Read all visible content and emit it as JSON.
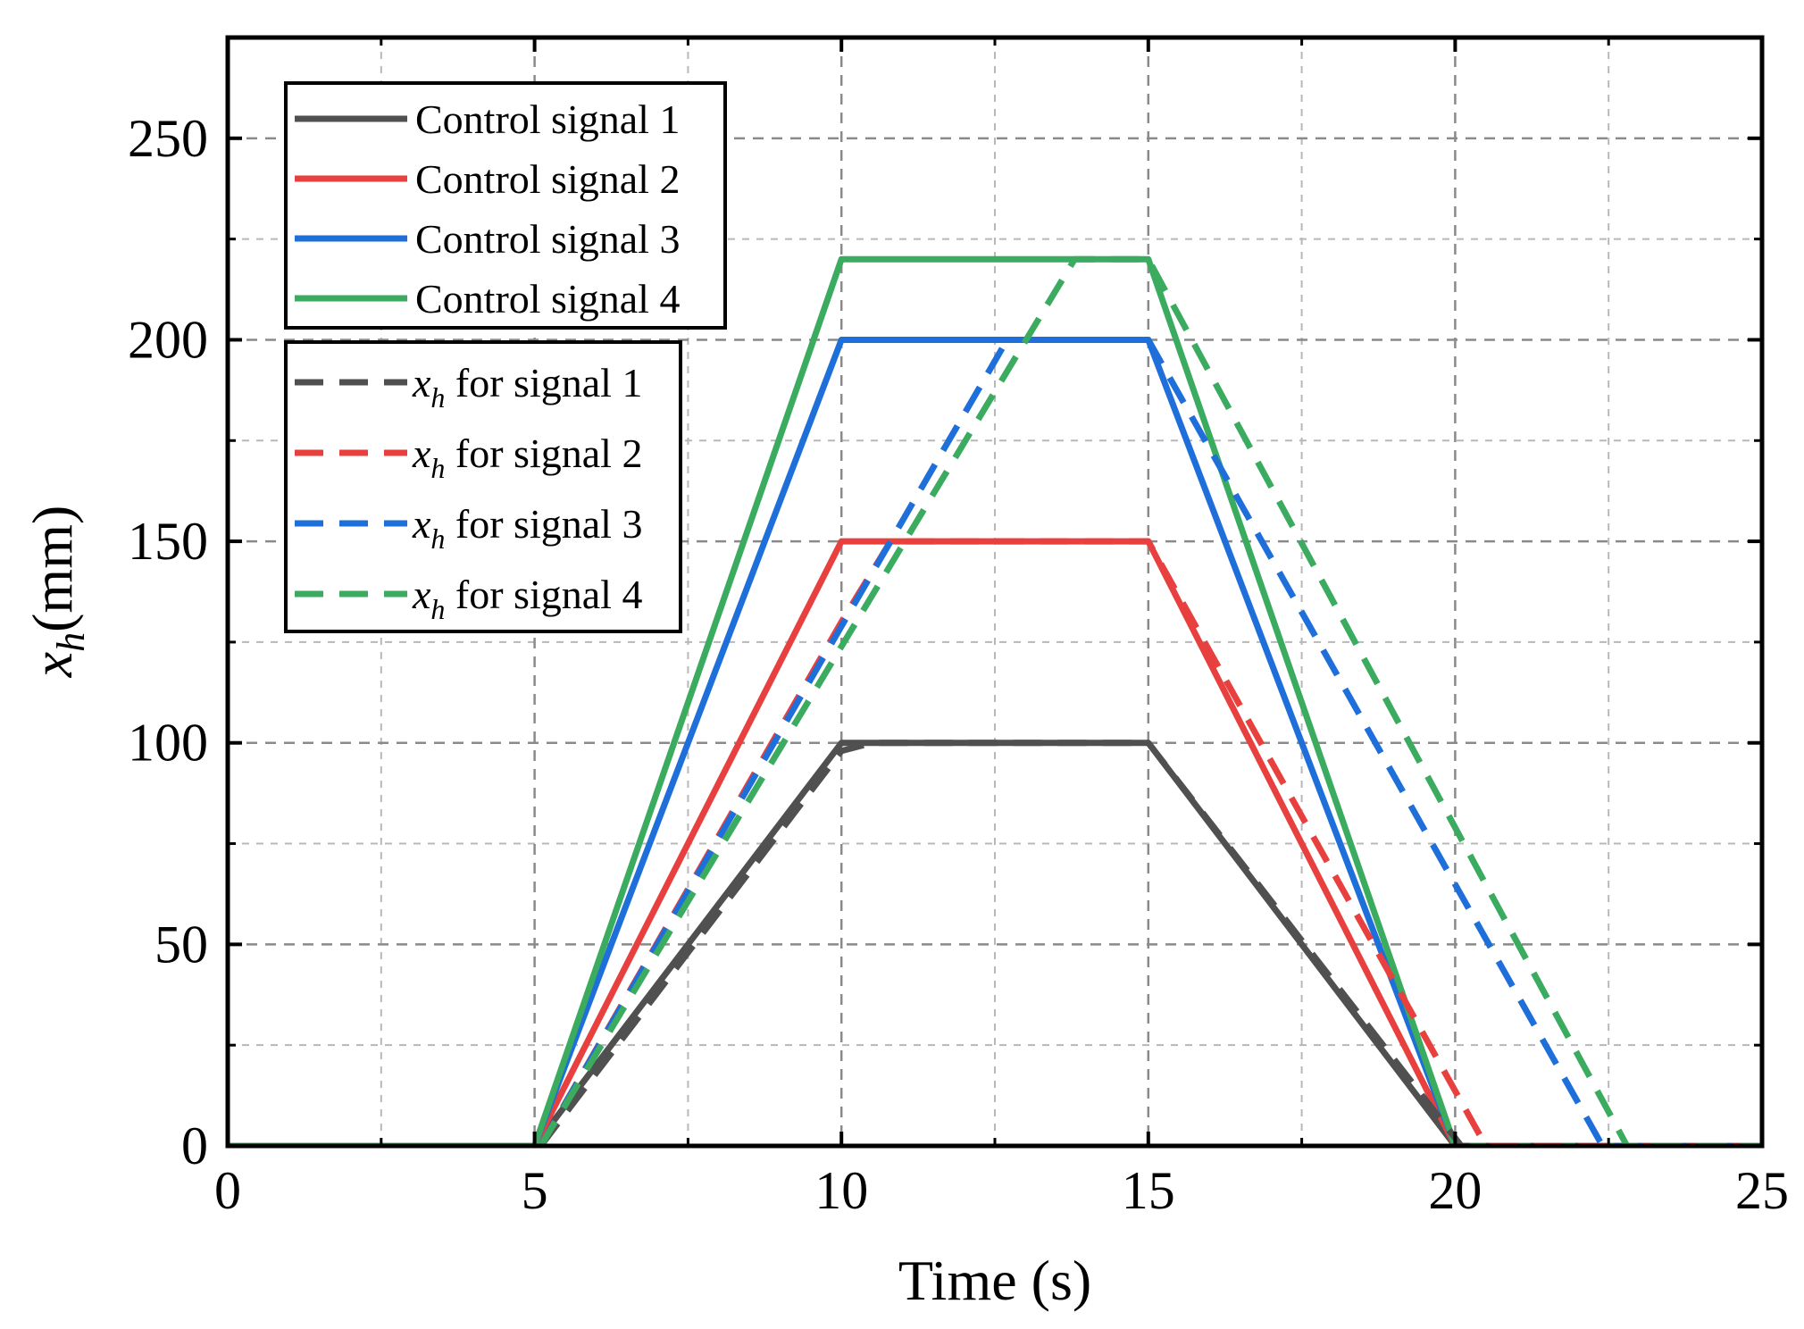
{
  "chart_data": {
    "type": "line",
    "title": "",
    "xlabel": "Time (s)",
    "ylabel": {
      "var": "x",
      "sub": "h",
      "unit": "(mm)"
    },
    "xlim": [
      0,
      25
    ],
    "ylim": [
      0,
      275
    ],
    "x_ticks": [
      "0",
      "5",
      "10",
      "15",
      "20",
      "25"
    ],
    "y_ticks": [
      "0",
      "50",
      "100",
      "150",
      "200",
      "250"
    ],
    "grid": true,
    "colors": {
      "black": "#505050",
      "red": "#e8403f",
      "blue": "#1e6fd9",
      "green": "#3aab5f"
    },
    "series": [
      {
        "name": "Control signal 1",
        "style": "solid",
        "color": "#505050",
        "x": [
          0,
          5,
          10,
          15,
          20,
          25
        ],
        "y": [
          0,
          0,
          100,
          100,
          0,
          0
        ]
      },
      {
        "name": "Control signal 2",
        "style": "solid",
        "color": "#e8403f",
        "x": [
          0,
          5,
          10,
          15,
          20,
          25
        ],
        "y": [
          0,
          0,
          150,
          150,
          0,
          0
        ]
      },
      {
        "name": "Control signal 3",
        "style": "solid",
        "color": "#1e6fd9",
        "x": [
          0,
          5,
          10,
          15,
          20,
          25
        ],
        "y": [
          0,
          0,
          200,
          200,
          0,
          0
        ]
      },
      {
        "name": "Control signal 4",
        "style": "solid",
        "color": "#3aab5f",
        "x": [
          0,
          5,
          10,
          15,
          20,
          25
        ],
        "y": [
          0,
          0,
          220,
          220,
          0,
          0
        ]
      },
      {
        "name": "for signal 1",
        "var": "x",
        "sub": "h",
        "style": "dashed",
        "color": "#505050",
        "x": [
          0,
          5.1,
          10,
          10.5,
          15,
          20.1,
          25
        ],
        "y": [
          0,
          0,
          98,
          100,
          100,
          0,
          0
        ]
      },
      {
        "name": "for signal 2",
        "var": "x",
        "sub": "h",
        "style": "dashed",
        "color": "#e8403f",
        "x": [
          0,
          5.1,
          10,
          10.8,
          15,
          20.5,
          25
        ],
        "y": [
          0,
          0,
          130,
          150,
          150,
          0,
          0
        ]
      },
      {
        "name": "for signal 3",
        "var": "x",
        "sub": "h",
        "style": "dashed",
        "color": "#1e6fd9",
        "x": [
          0,
          5.1,
          12.7,
          15,
          22.4,
          25
        ],
        "y": [
          0,
          0,
          200,
          200,
          0,
          0
        ]
      },
      {
        "name": "for signal 4",
        "var": "x",
        "sub": "h",
        "style": "dashed",
        "color": "#3aab5f",
        "x": [
          0,
          5.1,
          13.8,
          15,
          22.8,
          25
        ],
        "y": [
          0,
          0,
          220,
          220,
          0,
          0
        ]
      }
    ]
  }
}
